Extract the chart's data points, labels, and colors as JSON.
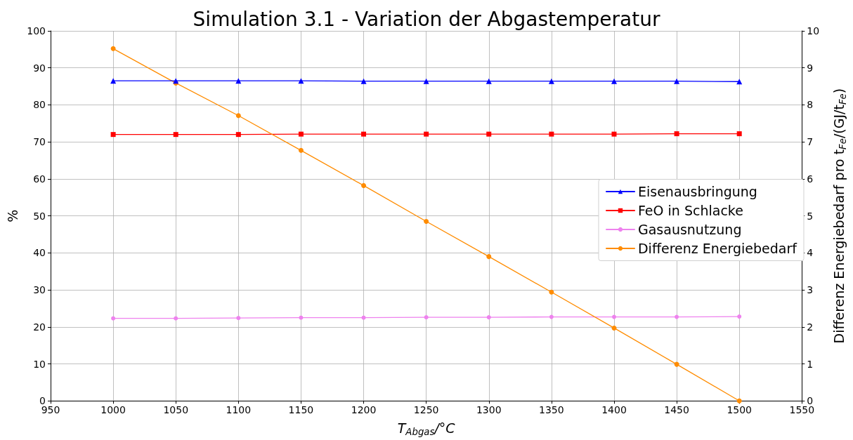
{
  "chart_data": {
    "type": "line",
    "title": "Simulation 3.1 - Variation der Abgastemperatur",
    "xlabel": "T$_{Abgas}$/°C",
    "ylabel": "%",
    "y2label": "Differenz Energiebedarf pro t$_{Fe}$/(GJ/t$_{Fe}$)",
    "x": [
      1000,
      1050,
      1100,
      1150,
      1200,
      1250,
      1300,
      1350,
      1400,
      1450,
      1500
    ],
    "series": [
      {
        "name": "Eisenausbringung",
        "color": "#0000ff",
        "marker": "triangle",
        "values": [
          86.5,
          86.5,
          86.5,
          86.5,
          86.4,
          86.4,
          86.4,
          86.4,
          86.4,
          86.4,
          86.3
        ]
      },
      {
        "name": "FeO in Schlacke",
        "color": "#ff0000",
        "marker": "square",
        "values": [
          72.0,
          72.0,
          72.0,
          72.1,
          72.1,
          72.1,
          72.1,
          72.1,
          72.1,
          72.2,
          72.2
        ]
      },
      {
        "name": "Gasausnutzung",
        "color": "#ee82ee",
        "marker": "circle",
        "values": [
          22.3,
          22.3,
          22.4,
          22.5,
          22.5,
          22.6,
          22.6,
          22.7,
          22.7,
          22.7,
          22.8
        ]
      },
      {
        "name": "Differenz Energiebedarf",
        "color": "#ff8c00",
        "marker": "circle",
        "axis": "y2",
        "values": [
          9.52,
          8.59,
          7.71,
          6.77,
          5.82,
          4.85,
          3.9,
          2.94,
          1.97,
          0.99,
          0.0
        ]
      }
    ],
    "xlim": [
      950,
      1550
    ],
    "xticks": [
      950,
      1000,
      1050,
      1100,
      1150,
      1200,
      1250,
      1300,
      1350,
      1400,
      1450,
      1500,
      1550
    ],
    "ylim": [
      0,
      100
    ],
    "yticks": [
      0,
      10,
      20,
      30,
      40,
      50,
      60,
      70,
      80,
      90,
      100
    ],
    "y2lim": [
      0,
      10
    ],
    "y2ticks": [
      0,
      1,
      2,
      3,
      4,
      5,
      6,
      7,
      8,
      9,
      10
    ],
    "grid": true,
    "legend": "right",
    "line_style": "solid"
  }
}
